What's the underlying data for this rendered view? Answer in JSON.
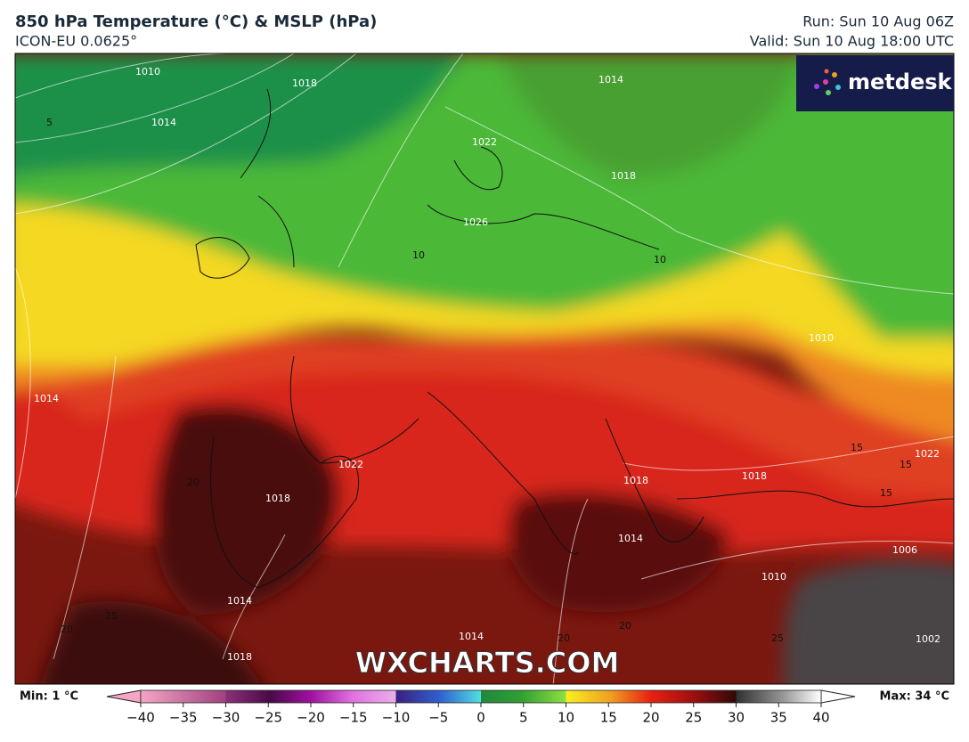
{
  "header": {
    "title": "850 hPa Temperature (°C) & MSLP (hPa)",
    "subtitle": "ICON-EU 0.0625°",
    "run": "Run: Sun 10 Aug 06Z",
    "valid": "Valid: Sun 10 Aug 18:00 UTC"
  },
  "logo": "metdesk",
  "watermark": "WXCHARTS.COM",
  "map": {
    "contour_labels": [
      "1010",
      "1014",
      "5",
      "1018",
      "1022",
      "1026",
      "1014",
      "1018",
      "10",
      "10",
      "1014",
      "1018",
      "1022",
      "1018",
      "20",
      "1018",
      "1014",
      "15",
      "15",
      "15",
      "1022",
      "1006",
      "1010",
      "1014",
      "1002",
      "1014",
      "20",
      "20",
      "20",
      "25",
      "25",
      "1018",
      "1010"
    ]
  },
  "colorbar": {
    "min": "Min: 1 °C",
    "max": "Max: 34 °C",
    "ticks": [
      {
        "value": -40,
        "label": "−40"
      },
      {
        "value": -35,
        "label": "−35"
      },
      {
        "value": -30,
        "label": "−30"
      },
      {
        "value": -25,
        "label": "−25"
      },
      {
        "value": -20,
        "label": "−20"
      },
      {
        "value": -15,
        "label": "−15"
      },
      {
        "value": -10,
        "label": "−10"
      },
      {
        "value": -5,
        "label": "−5"
      },
      0,
      5,
      10,
      15,
      20,
      25,
      30,
      35,
      40
    ]
  }
}
